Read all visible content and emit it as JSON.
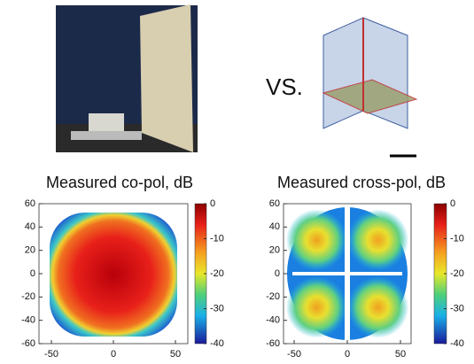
{
  "vs_label": "VS.",
  "panels": [
    {
      "title": "Measured co-pol, dB",
      "xticks": [
        -50,
        0,
        50
      ],
      "yticks": [
        60,
        40,
        20,
        0,
        -20,
        -40,
        -60
      ],
      "xlim": [
        -60,
        60
      ],
      "ylim": [
        -60,
        60
      ],
      "colorbar_ticks": [
        0,
        -10,
        -20,
        -30,
        -40
      ],
      "clim": [
        -40,
        0
      ]
    },
    {
      "title": "Measured cross-pol, dB",
      "xticks": [
        -50,
        0,
        50
      ],
      "yticks": [
        60,
        40,
        20,
        0,
        -20,
        -40,
        -60
      ],
      "xlim": [
        -60,
        60
      ],
      "ylim": [
        -60,
        60
      ],
      "colorbar_ticks": [
        0,
        -10,
        -20,
        -30,
        -40
      ],
      "clim": [
        -40,
        0
      ]
    }
  ]
}
